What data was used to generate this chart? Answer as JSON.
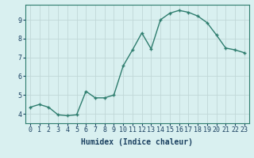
{
  "x": [
    0,
    1,
    2,
    3,
    4,
    5,
    6,
    7,
    8,
    9,
    10,
    11,
    12,
    13,
    14,
    15,
    16,
    17,
    18,
    19,
    20,
    21,
    22,
    23
  ],
  "y": [
    4.35,
    4.5,
    4.35,
    3.95,
    3.9,
    3.95,
    5.2,
    4.85,
    4.85,
    5.0,
    6.55,
    7.4,
    8.3,
    7.45,
    9.0,
    9.35,
    9.5,
    9.4,
    9.2,
    8.85,
    8.2,
    7.5,
    7.4,
    7.25
  ],
  "line_color": "#2e7d6e",
  "marker": "+",
  "marker_size": 3,
  "bg_color": "#d9f0f0",
  "grid_color": "#c0d8d8",
  "xlabel": "Humidex (Indice chaleur)",
  "xlabel_fontsize": 7,
  "xlim": [
    -0.5,
    23.5
  ],
  "ylim": [
    3.5,
    9.8
  ],
  "yticks": [
    4,
    5,
    6,
    7,
    8,
    9
  ],
  "xticks": [
    0,
    1,
    2,
    3,
    4,
    5,
    6,
    7,
    8,
    9,
    10,
    11,
    12,
    13,
    14,
    15,
    16,
    17,
    18,
    19,
    20,
    21,
    22,
    23
  ],
  "tick_fontsize": 6,
  "line_width": 1.0,
  "spine_color": "#2e7d6e",
  "tick_color": "#1a4060",
  "xlabel_color": "#1a4060"
}
